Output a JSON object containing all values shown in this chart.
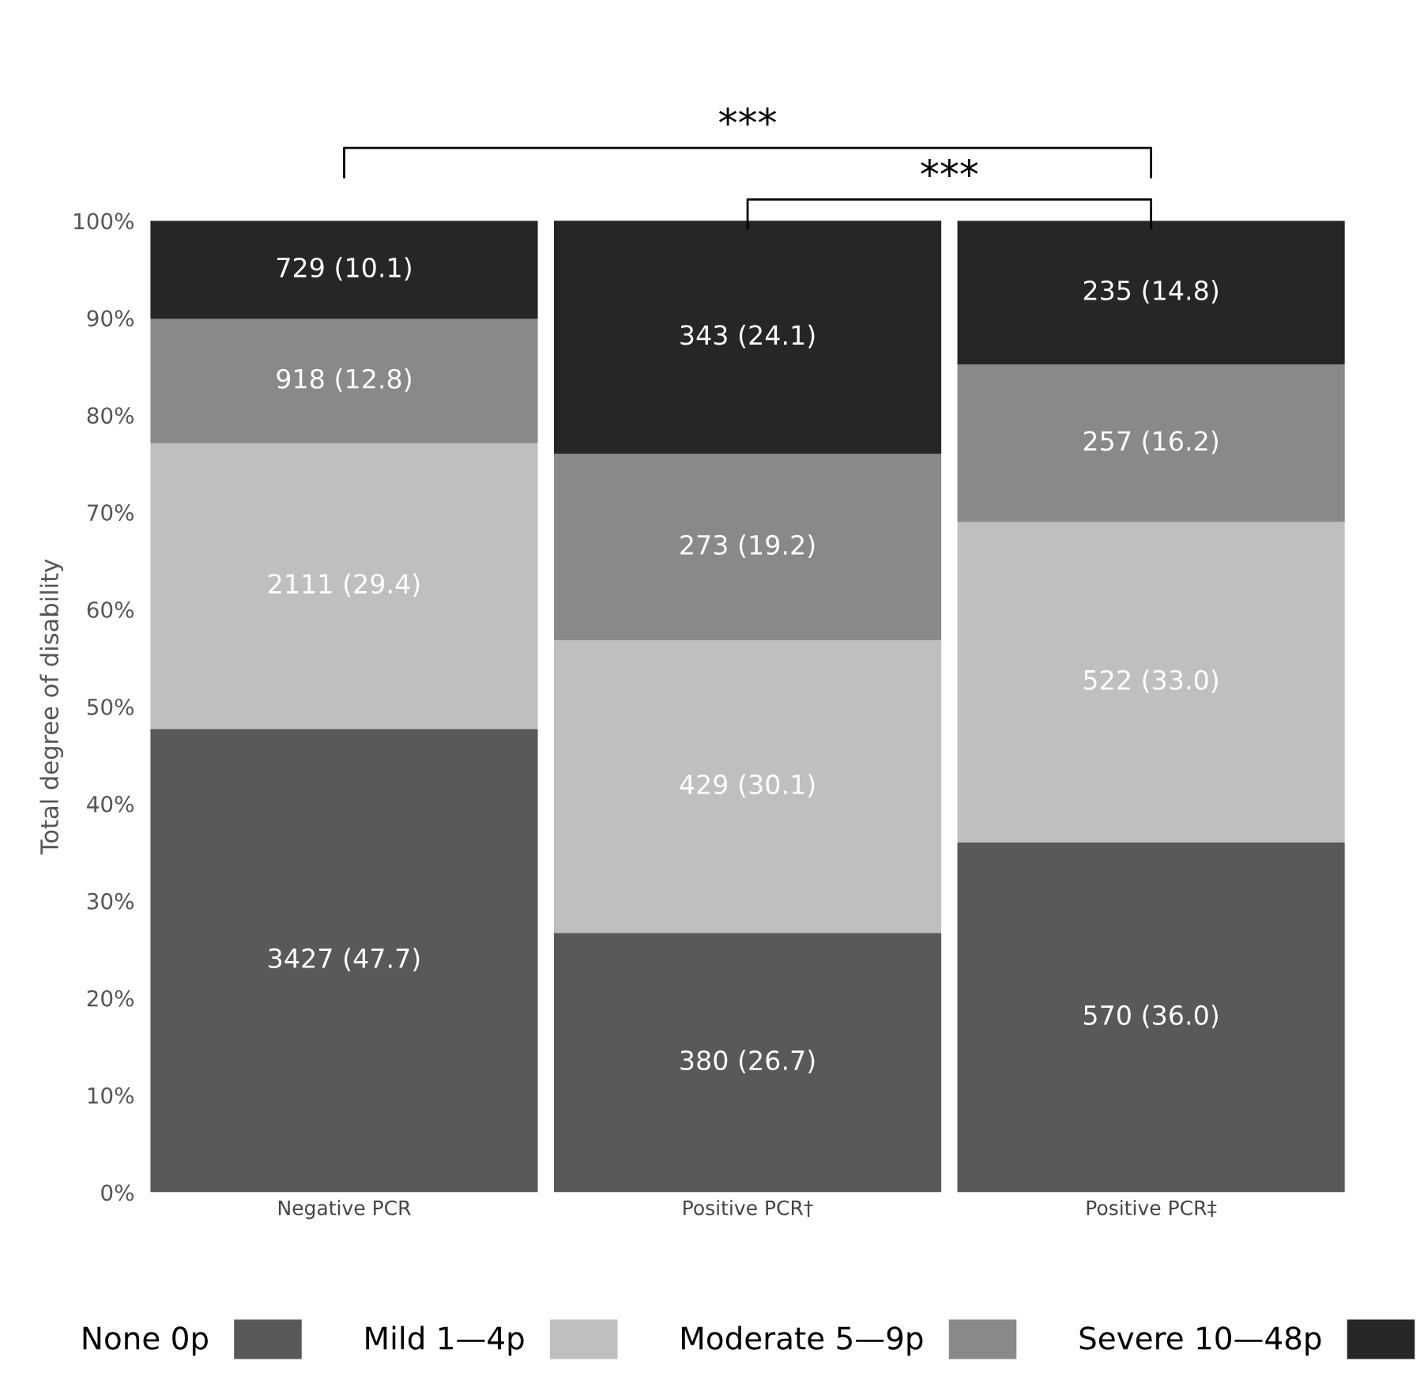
{
  "chart_data": {
    "type": "bar",
    "stacked": true,
    "ylabel": "Total degree of disability",
    "categories": [
      "Negative PCR",
      "Positive PCR†",
      "Positive PCR‡"
    ],
    "series": [
      {
        "name": "None 0p",
        "color": "#595959",
        "values": [
          47.7,
          26.7,
          36.0
        ],
        "value_labels": [
          "3427 (47.7)",
          "380 (26.7)",
          "570 (36.0)"
        ]
      },
      {
        "name": "Mild 1—4p",
        "color": "#bfbfbf",
        "values": [
          29.4,
          30.1,
          33.0
        ],
        "value_labels": [
          "2111 (29.4)",
          "429 (30.1)",
          "522 (33.0)"
        ]
      },
      {
        "name": "Moderate 5—9p",
        "color": "#898989",
        "values": [
          12.8,
          19.2,
          16.2
        ],
        "value_labels": [
          "918 (12.8)",
          "273 (19.2)",
          "257 (16.2)"
        ]
      },
      {
        "name": "Severe 10—48p",
        "color": "#262626",
        "values": [
          10.1,
          24.1,
          14.8
        ],
        "value_labels": [
          "729 (10.1)",
          "343 (24.1)",
          "235 (14.8)"
        ]
      }
    ],
    "ylim": [
      0,
      100
    ],
    "yticks": [
      {
        "value": 0,
        "label": "0%"
      },
      {
        "value": 10,
        "label": "10%"
      },
      {
        "value": 20,
        "label": "20%"
      },
      {
        "value": 30,
        "label": "30%"
      },
      {
        "value": 40,
        "label": "40%"
      },
      {
        "value": 50,
        "label": "50%"
      },
      {
        "value": 60,
        "label": "60%"
      },
      {
        "value": 70,
        "label": "70%"
      },
      {
        "value": 80,
        "label": "80%"
      },
      {
        "value": 90,
        "label": "90%"
      },
      {
        "value": 100,
        "label": "100%"
      }
    ],
    "grid": false,
    "legend": "bottom",
    "annotations": [
      "***",
      "***"
    ]
  }
}
